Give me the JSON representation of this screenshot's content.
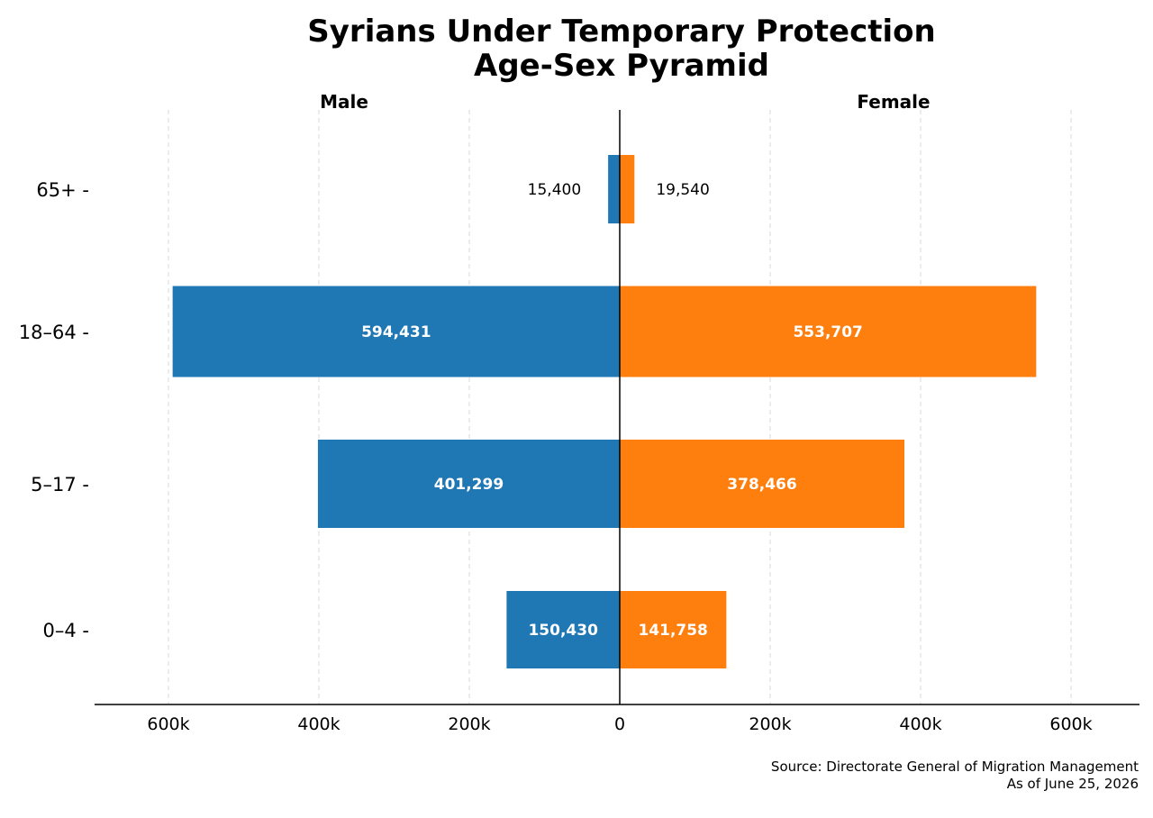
{
  "chart_data": {
    "type": "bar",
    "title": [
      "Syrians Under Temporary Protection",
      "Age-Sex Pyramid"
    ],
    "left_label": "Male",
    "right_label": "Female",
    "categories": [
      "65+",
      "18–64",
      "5–17",
      "0–4"
    ],
    "series": [
      {
        "name": "Male",
        "color": "#1f77b4",
        "values": [
          15400,
          594431,
          401299,
          150430
        ],
        "value_labels": [
          "15,400",
          "594,431",
          "401,299",
          "150,430"
        ]
      },
      {
        "name": "Female",
        "color": "#ff7f0e",
        "values": [
          19540,
          553707,
          378466,
          141758
        ],
        "value_labels": [
          "19,540",
          "553,707",
          "378,466",
          "141,758"
        ]
      }
    ],
    "xlim": [
      -700000,
      700000
    ],
    "x_ticks": [
      -600000,
      -400000,
      -200000,
      0,
      200000,
      400000,
      600000
    ],
    "x_tick_labels": [
      "600k",
      "400k",
      "200k",
      "0",
      "200k",
      "400k",
      "600k"
    ],
    "grid": true,
    "source": [
      "Source: Directorate General of Migration Management",
      "As of June 25, 2026"
    ]
  }
}
